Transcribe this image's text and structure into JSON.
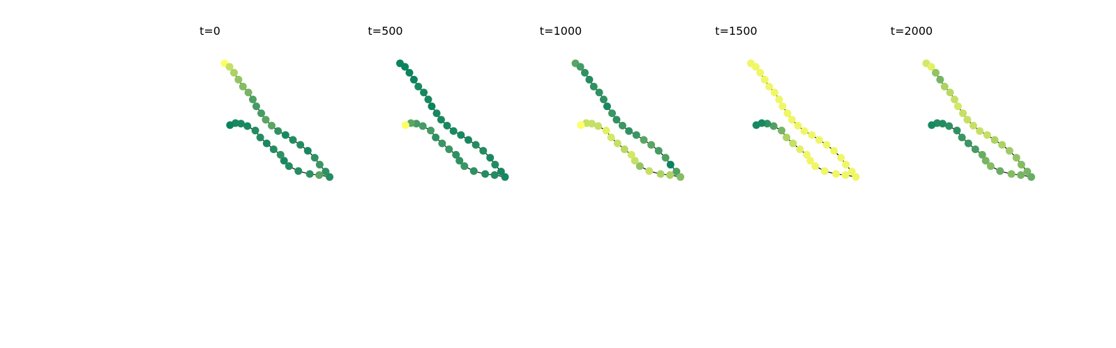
{
  "chart_data": {
    "type": "scatter",
    "description_free": true,
    "colormap": [
      "#007e5e",
      "#2f9162",
      "#5ba564",
      "#92c464",
      "#c5e064",
      "#fdff66"
    ],
    "value_range": [
      0,
      1
    ],
    "polyline": [
      [
        0.0,
        0.0
      ],
      [
        -0.07,
        -0.1
      ],
      [
        -0.19,
        -0.19
      ],
      [
        -0.33,
        -0.28
      ],
      [
        -0.47,
        -0.37
      ],
      [
        -0.59,
        -0.48
      ],
      [
        -0.73,
        -0.57
      ],
      [
        -0.87,
        -0.64
      ],
      [
        -1.01,
        -0.74
      ],
      [
        -1.14,
        -0.83
      ],
      [
        -1.26,
        -0.95
      ],
      [
        -1.37,
        -1.08
      ],
      [
        -1.45,
        -1.23
      ],
      [
        -1.55,
        -1.38
      ],
      [
        -1.65,
        -1.53
      ],
      [
        -1.77,
        -1.68
      ],
      [
        -1.91,
        -1.82
      ],
      [
        -2.05,
        -1.92
      ],
      [
        -2.19,
        -2.04
      ],
      [
        -2.3,
        -2.12
      ],
      [
        -2.26,
        -1.91
      ],
      [
        -2.24,
        -1.72
      ],
      [
        -2.18,
        -1.49
      ],
      [
        -2.08,
        -1.3
      ],
      [
        -1.97,
        -1.2
      ],
      [
        -1.85,
        -1.13
      ],
      [
        -1.74,
        -0.99
      ],
      [
        -1.62,
        -0.85
      ],
      [
        -1.5,
        -0.72
      ],
      [
        -1.36,
        -0.62
      ],
      [
        -1.27,
        -0.46
      ],
      [
        -1.22,
        -0.33
      ],
      [
        -1.21,
        -0.22
      ],
      [
        -1.25,
        -0.11
      ]
    ],
    "panels": [
      {
        "title": "t=0",
        "values": [
          1.0,
          0.8,
          0.7,
          0.6,
          0.55,
          0.5,
          0.35,
          0.3,
          0.3,
          0.4,
          0.4,
          0.2,
          0.1,
          0.15,
          0.15,
          0.1,
          0.2,
          0.25,
          0.2,
          0.15,
          0.4,
          0.2,
          0.15,
          0.15,
          0.1,
          0.2,
          0.15,
          0.1,
          0.15,
          0.15,
          0.1,
          0.1,
          0.1,
          0.05
        ]
      },
      {
        "title": "t=500",
        "values": [
          0.05,
          0.05,
          0.05,
          0.05,
          0.1,
          0.1,
          0.1,
          0.05,
          0.1,
          0.1,
          0.1,
          0.1,
          0.1,
          0.1,
          0.15,
          0.15,
          0.1,
          0.15,
          0.1,
          0.1,
          0.15,
          0.15,
          0.2,
          0.25,
          0.2,
          0.2,
          0.25,
          0.25,
          0.2,
          0.3,
          0.3,
          0.3,
          0.4,
          1.0
        ]
      },
      {
        "title": "t=1000",
        "values": [
          0.4,
          0.3,
          0.2,
          0.15,
          0.2,
          0.2,
          0.2,
          0.1,
          0.25,
          0.2,
          0.25,
          0.2,
          0.25,
          0.4,
          0.4,
          0.3,
          0.35,
          0.05,
          0.35,
          0.55,
          0.7,
          0.7,
          0.8,
          0.6,
          0.8,
          0.85,
          0.75,
          0.8,
          0.85,
          0.9,
          0.8,
          0.8,
          0.8,
          1.0
        ]
      },
      {
        "title": "t=1500",
        "values": [
          0.95,
          0.95,
          0.95,
          0.95,
          0.95,
          0.95,
          0.95,
          0.95,
          0.95,
          0.95,
          0.95,
          0.95,
          0.95,
          0.95,
          0.95,
          0.95,
          0.95,
          0.95,
          0.95,
          0.95,
          0.95,
          0.95,
          0.95,
          0.95,
          0.95,
          0.95,
          0.9,
          0.8,
          0.7,
          0.5,
          0.35,
          0.2,
          0.1,
          0.1
        ]
      },
      {
        "title": "t=2000",
        "values": [
          0.85,
          0.9,
          0.6,
          0.5,
          0.7,
          0.75,
          0.8,
          0.85,
          0.8,
          0.8,
          0.8,
          0.8,
          0.8,
          0.7,
          0.7,
          0.65,
          0.6,
          0.55,
          0.5,
          0.45,
          0.5,
          0.55,
          0.45,
          0.55,
          0.5,
          0.45,
          0.3,
          0.25,
          0.25,
          0.2,
          0.2,
          0.15,
          0.15,
          0.1
        ]
      }
    ]
  }
}
